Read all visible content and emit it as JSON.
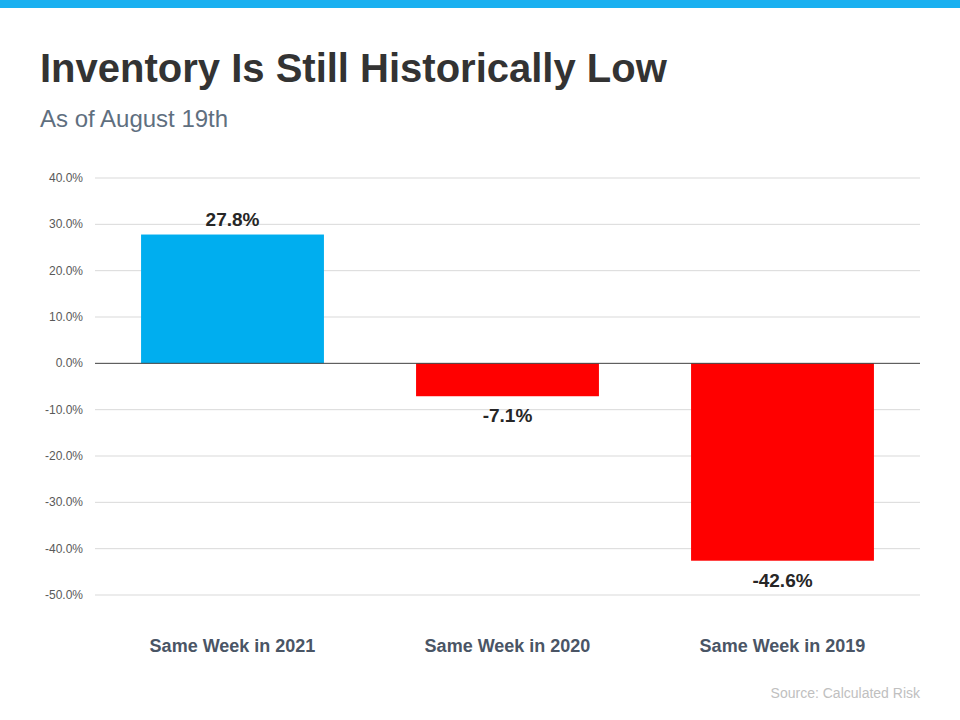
{
  "chart_data": {
    "type": "bar",
    "title": "Inventory Is Still Historically Low",
    "subtitle": "As of August 19th",
    "source": "Source: Calculated Risk",
    "categories": [
      "Same Week in 2021",
      "Same Week in 2020",
      "Same Week in 2019"
    ],
    "values": [
      27.8,
      -7.1,
      -42.6
    ],
    "value_labels": [
      "27.8%",
      "-7.1%",
      "-42.6%"
    ],
    "colors": [
      "#00aeef",
      "#ff0000",
      "#ff0000"
    ],
    "ylim": [
      -50,
      40
    ],
    "yticks": [
      {
        "value": 40,
        "label": "40.0%"
      },
      {
        "value": 30,
        "label": "30.0%"
      },
      {
        "value": 20,
        "label": "20.0%"
      },
      {
        "value": 10,
        "label": "10.0%"
      },
      {
        "value": 0,
        "label": "0.0%"
      },
      {
        "value": -10,
        "label": "-10.0%"
      },
      {
        "value": -20,
        "label": "-20.0%"
      },
      {
        "value": -30,
        "label": "-30.0%"
      },
      {
        "value": -40,
        "label": "-40.0%"
      },
      {
        "value": -50,
        "label": "-50.0%"
      }
    ],
    "grid": true,
    "data_labels": true
  }
}
